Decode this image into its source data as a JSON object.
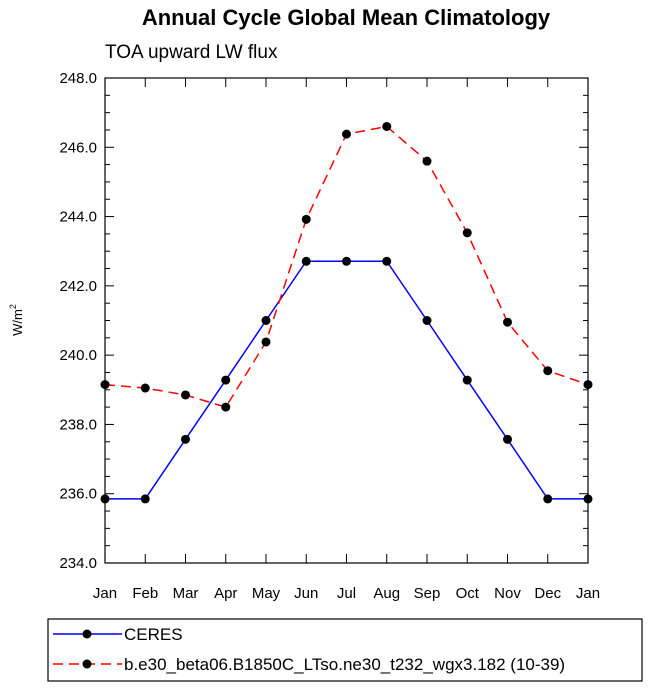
{
  "chart_data": {
    "type": "line",
    "title": "Annual Cycle Global Mean Climatology",
    "subtitle": "TOA upward LW flux",
    "ylabel": "W/m",
    "ylabel_superscript": "2",
    "categories": [
      "Jan",
      "Feb",
      "Mar",
      "Apr",
      "May",
      "Jun",
      "Jul",
      "Aug",
      "Sep",
      "Oct",
      "Nov",
      "Dec",
      "Jan"
    ],
    "ylim": [
      234.0,
      248.0
    ],
    "yticks": [
      234.0,
      236.0,
      238.0,
      240.0,
      242.0,
      244.0,
      246.0,
      248.0
    ],
    "ytick_labels": [
      "234.0",
      "236.0",
      "238.0",
      "240.0",
      "242.0",
      "244.0",
      "246.0",
      "248.0"
    ],
    "series": [
      {
        "name": "CERES",
        "color": "#0000ff",
        "dash": "solid",
        "values": [
          235.85,
          235.85,
          237.57,
          239.28,
          241.0,
          242.71,
          242.71,
          242.71,
          241.0,
          239.28,
          237.57,
          235.85,
          235.85
        ]
      },
      {
        "name": "b.e30_beta06.B1850C_LTso.ne30_t232_wgx3.182 (10-39)",
        "color": "#ff0000",
        "dash": "dashed",
        "values": [
          239.15,
          239.05,
          238.85,
          238.5,
          240.38,
          243.92,
          246.38,
          246.6,
          245.6,
          243.53,
          240.95,
          239.55,
          239.15
        ]
      }
    ],
    "legend_position": "bottom-left"
  }
}
